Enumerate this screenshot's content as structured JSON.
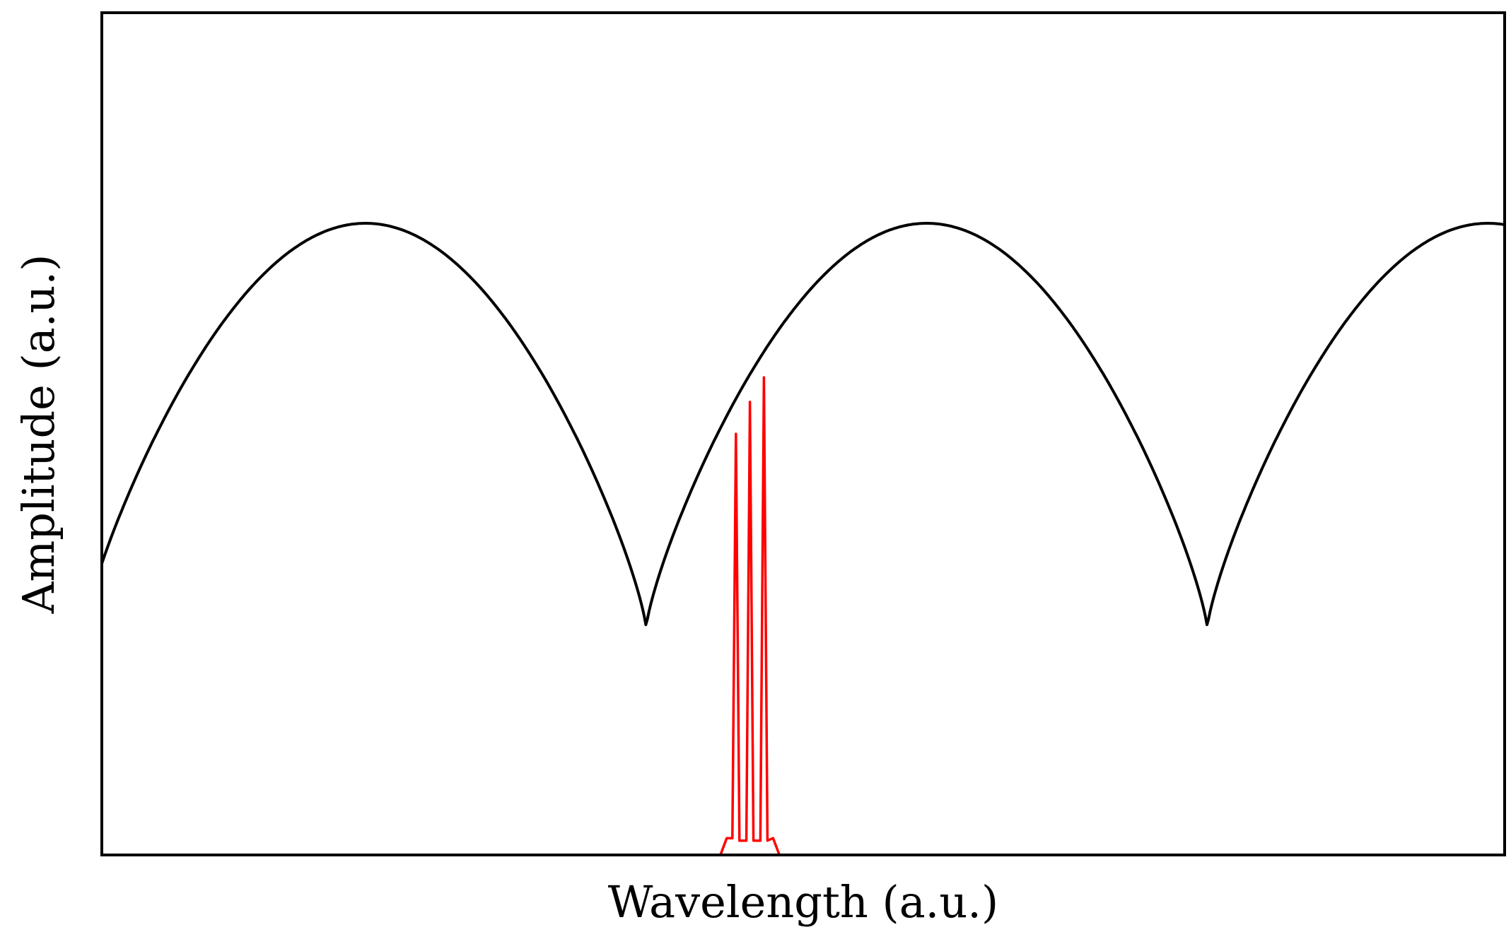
{
  "chart_data": {
    "type": "line",
    "title": "",
    "xlabel": "Wavelength (a.u.)",
    "ylabel": "Amplitude (a.u.)",
    "xlim": [
      0,
      10
    ],
    "ylim": [
      0,
      1
    ],
    "grid": false,
    "legend": "none",
    "x_ticks": [],
    "y_ticks": [],
    "series": [
      {
        "color": "#000000",
        "style": "periodic-arches",
        "period": 4,
        "first_minimum_x": 3.88,
        "peak_y": 0.75,
        "min_y": 0.27,
        "start_y": 0.33
      },
      {
        "color": "#ff0000",
        "style": "narrow-peaks",
        "base_x": [
          4.41,
          4.83
        ],
        "peaks": [
          {
            "x": 4.52,
            "y": 0.5
          },
          {
            "x": 4.62,
            "y": 0.538
          },
          {
            "x": 4.72,
            "y": 0.567
          }
        ]
      }
    ]
  }
}
